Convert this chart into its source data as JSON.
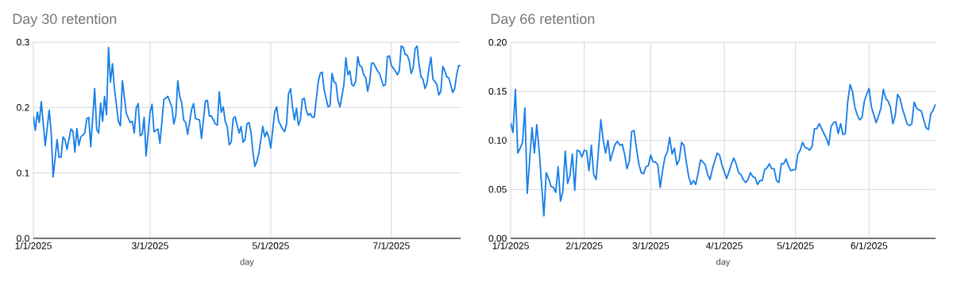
{
  "chart_data": [
    {
      "type": "line",
      "title": "Day 30 retention",
      "xlabel": "day",
      "grid": true,
      "xlim": [
        "2025-01-01",
        "2025-08-05"
      ],
      "ylim": [
        0,
        0.3
      ],
      "xticks": [
        {
          "value": "2025-01-01",
          "label": "1/1/2025"
        },
        {
          "value": "2025-03-01",
          "label": "3/1/2025"
        },
        {
          "value": "2025-05-01",
          "label": "5/1/2025"
        },
        {
          "value": "2025-07-01",
          "label": "7/1/2025"
        }
      ],
      "yticks": [
        {
          "value": 0,
          "label": "0.0"
        },
        0.1,
        0.2,
        0.3
      ],
      "x": [
        "2025-01-01",
        "2025-01-02",
        "2025-01-03",
        "2025-01-04",
        "2025-01-05",
        "2025-01-07",
        "2025-01-09",
        "2025-01-10",
        "2025-01-11",
        "2025-01-13",
        "2025-01-14",
        "2025-01-15",
        "2025-01-16",
        "2025-01-17",
        "2025-01-18",
        "2025-01-20",
        "2025-01-21",
        "2025-01-22",
        "2025-01-23",
        "2025-01-24",
        "2025-01-25",
        "2025-01-27",
        "2025-01-28",
        "2025-01-29",
        "2025-01-30",
        "2025-02-01",
        "2025-02-02",
        "2025-02-03",
        "2025-02-04",
        "2025-02-05",
        "2025-02-06",
        "2025-02-07",
        "2025-02-08",
        "2025-02-09",
        "2025-02-10",
        "2025-02-11",
        "2025-02-13",
        "2025-02-14",
        "2025-02-15",
        "2025-02-17",
        "2025-02-19",
        "2025-02-20",
        "2025-02-21",
        "2025-02-22",
        "2025-02-23",
        "2025-02-24",
        "2025-02-25",
        "2025-02-26",
        "2025-02-27",
        "2025-03-01",
        "2025-03-02",
        "2025-03-03",
        "2025-03-05",
        "2025-03-06",
        "2025-03-08",
        "2025-03-10",
        "2025-03-12",
        "2025-03-13",
        "2025-03-14",
        "2025-03-15",
        "2025-03-16",
        "2025-03-17",
        "2025-03-18",
        "2025-03-19",
        "2025-03-20",
        "2025-03-22",
        "2025-03-23",
        "2025-03-24",
        "2025-03-26",
        "2025-03-27",
        "2025-03-29",
        "2025-03-30",
        "2025-03-31",
        "2025-04-01",
        "2025-04-03",
        "2025-04-04",
        "2025-04-05",
        "2025-04-06",
        "2025-04-07",
        "2025-04-08",
        "2025-04-09",
        "2025-04-10",
        "2025-04-11",
        "2025-04-12",
        "2025-04-13",
        "2025-04-14",
        "2025-04-15",
        "2025-04-16",
        "2025-04-17",
        "2025-04-18",
        "2025-04-19",
        "2025-04-20",
        "2025-04-21",
        "2025-04-22",
        "2025-04-23",
        "2025-04-24",
        "2025-04-25",
        "2025-04-27",
        "2025-04-28",
        "2025-04-29",
        "2025-04-30",
        "2025-05-01",
        "2025-05-03",
        "2025-05-04",
        "2025-05-05",
        "2025-05-07",
        "2025-05-08",
        "2025-05-09",
        "2025-05-10",
        "2025-05-11",
        "2025-05-12",
        "2025-05-13",
        "2025-05-14",
        "2025-05-15",
        "2025-05-16",
        "2025-05-17",
        "2025-05-18",
        "2025-05-19",
        "2025-05-20",
        "2025-05-21",
        "2025-05-22",
        "2025-05-23",
        "2025-05-25",
        "2025-05-26",
        "2025-05-27",
        "2025-05-28",
        "2025-05-30",
        "2025-05-31",
        "2025-06-01",
        "2025-06-02",
        "2025-06-03",
        "2025-06-04",
        "2025-06-05",
        "2025-06-07",
        "2025-06-08",
        "2025-06-09",
        "2025-06-10",
        "2025-06-11",
        "2025-06-12",
        "2025-06-13",
        "2025-06-14",
        "2025-06-15",
        "2025-06-16",
        "2025-06-17",
        "2025-06-18",
        "2025-06-19",
        "2025-06-20",
        "2025-06-21",
        "2025-06-22",
        "2025-06-24",
        "2025-06-25",
        "2025-06-27",
        "2025-06-28",
        "2025-06-29",
        "2025-06-30",
        "2025-07-01",
        "2025-07-02",
        "2025-07-03",
        "2025-07-04",
        "2025-07-05",
        "2025-07-06",
        "2025-07-07",
        "2025-07-08",
        "2025-07-09",
        "2025-07-10",
        "2025-07-11",
        "2025-07-12",
        "2025-07-13",
        "2025-07-14",
        "2025-07-15",
        "2025-07-16",
        "2025-07-17",
        "2025-07-18",
        "2025-07-19",
        "2025-07-20",
        "2025-07-21",
        "2025-07-22",
        "2025-07-23",
        "2025-07-24",
        "2025-07-25",
        "2025-07-26",
        "2025-07-27",
        "2025-07-28",
        "2025-07-29",
        "2025-07-30",
        "2025-07-31",
        "2025-08-01",
        "2025-08-02",
        "2025-08-03",
        "2025-08-04",
        "2025-08-05"
      ],
      "series": [
        {
          "color": "#1a80e8",
          "values": [
            0.187,
            0.165,
            0.193,
            0.177,
            0.209,
            0.142,
            0.196,
            0.163,
            0.094,
            0.151,
            0.124,
            0.124,
            0.155,
            0.151,
            0.136,
            0.167,
            0.164,
            0.132,
            0.168,
            0.142,
            0.155,
            0.161,
            0.183,
            0.185,
            0.14,
            0.229,
            0.167,
            0.161,
            0.207,
            0.179,
            0.217,
            0.189,
            0.292,
            0.239,
            0.267,
            0.229,
            0.179,
            0.172,
            0.241,
            0.191,
            0.177,
            0.179,
            0.161,
            0.199,
            0.206,
            0.157,
            0.159,
            0.185,
            0.126,
            0.193,
            0.205,
            0.163,
            0.167,
            0.145,
            0.212,
            0.217,
            0.201,
            0.175,
            0.187,
            0.241,
            0.217,
            0.207,
            0.181,
            0.177,
            0.159,
            0.197,
            0.206,
            0.183,
            0.181,
            0.153,
            0.21,
            0.211,
            0.187,
            0.187,
            0.175,
            0.173,
            0.224,
            0.193,
            0.201,
            0.179,
            0.171,
            0.143,
            0.147,
            0.183,
            0.186,
            0.173,
            0.161,
            0.171,
            0.147,
            0.151,
            0.175,
            0.177,
            0.163,
            0.132,
            0.11,
            0.118,
            0.13,
            0.171,
            0.155,
            0.163,
            0.155,
            0.138,
            0.193,
            0.201,
            0.179,
            0.167,
            0.163,
            0.175,
            0.221,
            0.229,
            0.201,
            0.181,
            0.199,
            0.173,
            0.181,
            0.213,
            0.214,
            0.195,
            0.188,
            0.191,
            0.185,
            0.185,
            0.239,
            0.252,
            0.254,
            0.227,
            0.201,
            0.203,
            0.252,
            0.239,
            0.237,
            0.211,
            0.201,
            0.235,
            0.276,
            0.25,
            0.256,
            0.235,
            0.233,
            0.241,
            0.278,
            0.264,
            0.262,
            0.25,
            0.246,
            0.225,
            0.239,
            0.268,
            0.268,
            0.256,
            0.252,
            0.233,
            0.235,
            0.278,
            0.279,
            0.264,
            0.26,
            0.256,
            0.25,
            0.256,
            0.294,
            0.292,
            0.281,
            0.28,
            0.272,
            0.252,
            0.26,
            0.29,
            0.294,
            0.266,
            0.247,
            0.243,
            0.229,
            0.237,
            0.26,
            0.277,
            0.243,
            0.24,
            0.235,
            0.219,
            0.225,
            0.263,
            0.256,
            0.247,
            0.245,
            0.235,
            0.223,
            0.229,
            0.25,
            0.264,
            0.264
          ]
        }
      ]
    },
    {
      "type": "line",
      "title": "Day 66 retention",
      "xlabel": "day",
      "grid": true,
      "xlim": [
        "2025-01-01",
        "2025-06-29"
      ],
      "ylim": [
        0,
        0.2
      ],
      "xticks": [
        {
          "value": "2025-01-01",
          "label": "1/1/2025"
        },
        {
          "value": "2025-02-01",
          "label": "2/1/2025"
        },
        {
          "value": "2025-03-01",
          "label": "3/1/2025"
        },
        {
          "value": "2025-04-01",
          "label": "4/1/2025"
        },
        {
          "value": "2025-05-01",
          "label": "5/1/2025"
        },
        {
          "value": "2025-06-01",
          "label": "6/1/2025"
        }
      ],
      "yticks": [
        {
          "value": 0,
          "label": "0.00"
        },
        0.05,
        {
          "value": 0.1,
          "label": "0.10"
        },
        0.15,
        {
          "value": 0.2,
          "label": "0.20"
        }
      ],
      "x": [
        "2025-01-01",
        "2025-01-02",
        "2025-01-03",
        "2025-01-04",
        "2025-01-05",
        "2025-01-06",
        "2025-01-07",
        "2025-01-08",
        "2025-01-10",
        "2025-01-11",
        "2025-01-12",
        "2025-01-13",
        "2025-01-15",
        "2025-01-16",
        "2025-01-17",
        "2025-01-18",
        "2025-01-19",
        "2025-01-20",
        "2025-01-21",
        "2025-01-22",
        "2025-01-23",
        "2025-01-24",
        "2025-01-25",
        "2025-01-26",
        "2025-01-27",
        "2025-01-28",
        "2025-01-29",
        "2025-01-30",
        "2025-01-31",
        "2025-02-01",
        "2025-02-02",
        "2025-02-03",
        "2025-02-04",
        "2025-02-05",
        "2025-02-06",
        "2025-02-07",
        "2025-02-08",
        "2025-02-09",
        "2025-02-10",
        "2025-02-11",
        "2025-02-12",
        "2025-02-13",
        "2025-02-14",
        "2025-02-15",
        "2025-02-16",
        "2025-02-17",
        "2025-02-18",
        "2025-02-19",
        "2025-02-20",
        "2025-02-21",
        "2025-02-22",
        "2025-02-23",
        "2025-02-24",
        "2025-02-25",
        "2025-02-26",
        "2025-02-27",
        "2025-02-28",
        "2025-03-01",
        "2025-03-02",
        "2025-03-03",
        "2025-03-04",
        "2025-03-05",
        "2025-03-06",
        "2025-03-07",
        "2025-03-08",
        "2025-03-09",
        "2025-03-10",
        "2025-03-11",
        "2025-03-12",
        "2025-03-13",
        "2025-03-14",
        "2025-03-15",
        "2025-03-16",
        "2025-03-17",
        "2025-03-18",
        "2025-03-19",
        "2025-03-20",
        "2025-03-21",
        "2025-03-22",
        "2025-03-23",
        "2025-03-24",
        "2025-03-25",
        "2025-03-26",
        "2025-03-27",
        "2025-03-28",
        "2025-03-29",
        "2025-03-30",
        "2025-03-31",
        "2025-04-01",
        "2025-04-02",
        "2025-04-03",
        "2025-04-04",
        "2025-04-05",
        "2025-04-06",
        "2025-04-07",
        "2025-04-08",
        "2025-04-09",
        "2025-04-10",
        "2025-04-11",
        "2025-04-12",
        "2025-04-13",
        "2025-04-14",
        "2025-04-15",
        "2025-04-16",
        "2025-04-17",
        "2025-04-18",
        "2025-04-19",
        "2025-04-20",
        "2025-04-21",
        "2025-04-22",
        "2025-04-23",
        "2025-04-24",
        "2025-04-25",
        "2025-04-26",
        "2025-04-27",
        "2025-04-28",
        "2025-04-29",
        "2025-04-30",
        "2025-05-01",
        "2025-05-02",
        "2025-05-03",
        "2025-05-04",
        "2025-05-05",
        "2025-05-06",
        "2025-05-07",
        "2025-05-08",
        "2025-05-09",
        "2025-05-10",
        "2025-05-11",
        "2025-05-12",
        "2025-05-13",
        "2025-05-14",
        "2025-05-15",
        "2025-05-16",
        "2025-05-17",
        "2025-05-18",
        "2025-05-19",
        "2025-05-20",
        "2025-05-21",
        "2025-05-22",
        "2025-05-23",
        "2025-05-24",
        "2025-05-25",
        "2025-05-26",
        "2025-05-27",
        "2025-05-28",
        "2025-05-29",
        "2025-05-30",
        "2025-05-31",
        "2025-06-01",
        "2025-06-02",
        "2025-06-03",
        "2025-06-04",
        "2025-06-05",
        "2025-06-06",
        "2025-06-07",
        "2025-06-08",
        "2025-06-09",
        "2025-06-10",
        "2025-06-11",
        "2025-06-12",
        "2025-06-13",
        "2025-06-14",
        "2025-06-15",
        "2025-06-16",
        "2025-06-17",
        "2025-06-18",
        "2025-06-19",
        "2025-06-20",
        "2025-06-21",
        "2025-06-22",
        "2025-06-23",
        "2025-06-24",
        "2025-06-25",
        "2025-06-26",
        "2025-06-27",
        "2025-06-28",
        "2025-06-29"
      ],
      "series": [
        {
          "color": "#1a80e8",
          "values": [
            0.118,
            0.108,
            0.152,
            0.087,
            0.092,
            0.098,
            0.133,
            0.046,
            0.113,
            0.087,
            0.116,
            0.09,
            0.023,
            0.067,
            0.061,
            0.053,
            0.052,
            0.047,
            0.073,
            0.038,
            0.048,
            0.089,
            0.056,
            0.064,
            0.086,
            0.049,
            0.09,
            0.089,
            0.083,
            0.09,
            0.089,
            0.069,
            0.095,
            0.065,
            0.06,
            0.09,
            0.121,
            0.1,
            0.087,
            0.1,
            0.079,
            0.088,
            0.096,
            0.099,
            0.095,
            0.096,
            0.086,
            0.071,
            0.079,
            0.109,
            0.11,
            0.092,
            0.076,
            0.067,
            0.066,
            0.073,
            0.074,
            0.085,
            0.078,
            0.078,
            0.075,
            0.052,
            0.069,
            0.083,
            0.088,
            0.103,
            0.086,
            0.092,
            0.075,
            0.08,
            0.098,
            0.095,
            0.078,
            0.063,
            0.055,
            0.059,
            0.055,
            0.067,
            0.08,
            0.078,
            0.075,
            0.065,
            0.06,
            0.071,
            0.079,
            0.087,
            0.085,
            0.075,
            0.068,
            0.061,
            0.068,
            0.076,
            0.082,
            0.076,
            0.067,
            0.065,
            0.06,
            0.057,
            0.06,
            0.067,
            0.063,
            0.062,
            0.055,
            0.059,
            0.059,
            0.07,
            0.072,
            0.076,
            0.071,
            0.071,
            0.059,
            0.057,
            0.076,
            0.076,
            0.081,
            0.074,
            0.069,
            0.07,
            0.07,
            0.086,
            0.09,
            0.098,
            0.093,
            0.092,
            0.09,
            0.094,
            0.112,
            0.112,
            0.117,
            0.112,
            0.107,
            0.102,
            0.095,
            0.114,
            0.118,
            0.119,
            0.107,
            0.117,
            0.106,
            0.107,
            0.139,
            0.157,
            0.15,
            0.134,
            0.126,
            0.121,
            0.123,
            0.14,
            0.147,
            0.153,
            0.134,
            0.126,
            0.118,
            0.125,
            0.133,
            0.152,
            0.143,
            0.14,
            0.134,
            0.117,
            0.125,
            0.147,
            0.143,
            0.133,
            0.125,
            0.117,
            0.115,
            0.117,
            0.139,
            0.133,
            0.131,
            0.13,
            0.121,
            0.113,
            0.111,
            0.127,
            0.131,
            0.137
          ]
        }
      ]
    }
  ]
}
